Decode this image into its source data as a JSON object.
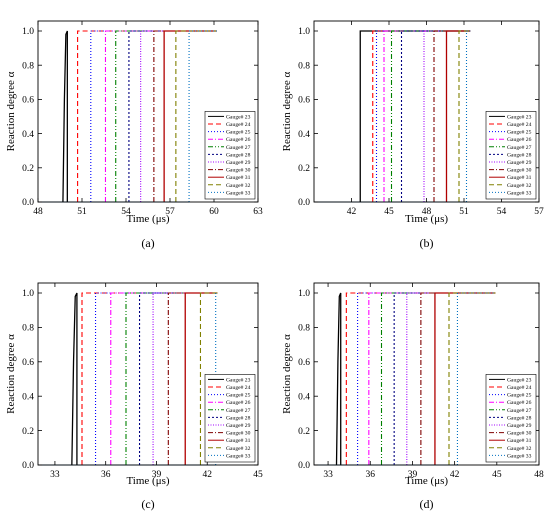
{
  "series_style": [
    {
      "name": "Gauge# 23",
      "color": "#000000",
      "dash": ""
    },
    {
      "name": "Gauge# 24",
      "color": "#ff0000",
      "dash": "5,3"
    },
    {
      "name": "Gauge# 25",
      "color": "#0000ff",
      "dash": "1,2"
    },
    {
      "name": "Gauge# 26",
      "color": "#ff00ff",
      "dash": "5,2,1,2"
    },
    {
      "name": "Gauge# 27",
      "color": "#008000",
      "dash": "5,2,1,2,1,2"
    },
    {
      "name": "Gauge# 28",
      "color": "#000080",
      "dash": "2,2"
    },
    {
      "name": "Gauge# 29",
      "color": "#a000ff",
      "dash": "1,1.5"
    },
    {
      "name": "Gauge# 30",
      "color": "#800000",
      "dash": "5,2,1,2"
    },
    {
      "name": "Gauge# 31",
      "color": "#b00000",
      "dash": ""
    },
    {
      "name": "Gauge# 32",
      "color": "#808000",
      "dash": "5,3"
    },
    {
      "name": "Gauge# 33",
      "color": "#0070c0",
      "dash": "1,2"
    }
  ],
  "chart_data": [
    {
      "type": "line",
      "panel_label": "(a)",
      "xlabel": "Time (μs)",
      "ylabel": "Reaction degree α",
      "xlim": [
        48,
        63
      ],
      "ylim": [
        0,
        1.0
      ],
      "xticks": [
        48,
        51,
        54,
        57,
        60,
        63
      ],
      "yticks": [
        0.0,
        0.2,
        0.4,
        0.6,
        0.8,
        1.0
      ],
      "legend_position": "bottom-right",
      "series": [
        {
          "name": "Gauge# 23",
          "x": [
            49.7,
            49.8,
            49.9,
            50.0,
            50.0
          ],
          "y": [
            0,
            0.6,
            0.98,
            1.0,
            0
          ]
        },
        {
          "name": "Gauge# 24",
          "x": [
            50.7,
            50.7,
            60.2
          ],
          "y": [
            0,
            1.0,
            1.0
          ]
        },
        {
          "name": "Gauge# 25",
          "x": [
            51.6,
            51.6,
            60.2
          ],
          "y": [
            0,
            1.0,
            1.0
          ]
        },
        {
          "name": "Gauge# 26",
          "x": [
            52.6,
            52.6,
            60.2
          ],
          "y": [
            0,
            1.0,
            1.0
          ]
        },
        {
          "name": "Gauge# 27",
          "x": [
            53.3,
            53.3,
            60.2
          ],
          "y": [
            0,
            1.0,
            1.0
          ]
        },
        {
          "name": "Gauge# 28",
          "x": [
            54.2,
            54.2,
            60.2
          ],
          "y": [
            0,
            1.0,
            1.0
          ]
        },
        {
          "name": "Gauge# 29",
          "x": [
            55.0,
            55.0,
            60.2
          ],
          "y": [
            0,
            1.0,
            1.0
          ]
        },
        {
          "name": "Gauge# 30",
          "x": [
            55.9,
            55.9,
            60.2
          ],
          "y": [
            0,
            1.0,
            1.0
          ]
        },
        {
          "name": "Gauge# 31",
          "x": [
            56.6,
            56.6,
            60.2
          ],
          "y": [
            0,
            1.0,
            1.0
          ]
        },
        {
          "name": "Gauge# 32",
          "x": [
            57.4,
            57.4,
            60.2
          ],
          "y": [
            0,
            1.0,
            1.0
          ]
        },
        {
          "name": "Gauge# 33",
          "x": [
            58.3,
            58.3,
            60.2
          ],
          "y": [
            0,
            1.0,
            1.0
          ]
        }
      ]
    },
    {
      "type": "line",
      "panel_label": "(b)",
      "xlabel": "Time (μs)",
      "ylabel": "Reaction degree α",
      "xlim": [
        39,
        57
      ],
      "ylim": [
        0,
        1.0
      ],
      "xticks": [
        42,
        45,
        48,
        51,
        54,
        57
      ],
      "yticks": [
        0.0,
        0.2,
        0.4,
        0.6,
        0.8,
        1.0
      ],
      "legend_position": "bottom-right",
      "series": [
        {
          "name": "Gauge# 23",
          "x": [
            42.7,
            42.7,
            51.5
          ],
          "y": [
            0,
            1.0,
            1.0
          ]
        },
        {
          "name": "Gauge# 24",
          "x": [
            43.7,
            43.7,
            51.5
          ],
          "y": [
            0,
            1.0,
            1.0
          ]
        },
        {
          "name": "Gauge# 25",
          "x": [
            44.0,
            44.0,
            51.5
          ],
          "y": [
            0,
            1.0,
            1.0
          ]
        },
        {
          "name": "Gauge# 26",
          "x": [
            44.6,
            44.6,
            51.5
          ],
          "y": [
            0,
            1.0,
            1.0
          ]
        },
        {
          "name": "Gauge# 27",
          "x": [
            45.2,
            45.2,
            51.5
          ],
          "y": [
            0,
            1.0,
            1.0
          ]
        },
        {
          "name": "Gauge# 28",
          "x": [
            46.0,
            46.0,
            51.5
          ],
          "y": [
            0,
            1.0,
            1.0
          ]
        },
        {
          "name": "Gauge# 29",
          "x": [
            47.8,
            47.8,
            51.5
          ],
          "y": [
            0,
            1.0,
            1.0
          ]
        },
        {
          "name": "Gauge# 30",
          "x": [
            48.6,
            48.6,
            51.5
          ],
          "y": [
            0,
            1.0,
            1.0
          ]
        },
        {
          "name": "Gauge# 31",
          "x": [
            49.6,
            49.6,
            51.5
          ],
          "y": [
            0,
            1.0,
            1.0
          ]
        },
        {
          "name": "Gauge# 32",
          "x": [
            50.6,
            50.6,
            51.5
          ],
          "y": [
            0,
            1.0,
            1.0
          ]
        },
        {
          "name": "Gauge# 33",
          "x": [
            51.2,
            51.2,
            51.5
          ],
          "y": [
            0,
            1.0,
            1.0
          ]
        }
      ]
    },
    {
      "type": "line",
      "panel_label": "(c)",
      "xlabel": "Time (μs)",
      "ylabel": "Reaction degree α",
      "xlim": [
        32,
        45
      ],
      "ylim": [
        0,
        1.0
      ],
      "xticks": [
        33,
        36,
        39,
        42,
        45
      ],
      "yticks": [
        0.0,
        0.2,
        0.4,
        0.6,
        0.8,
        1.0
      ],
      "legend_position": "bottom-right",
      "series": [
        {
          "name": "Gauge# 23",
          "x": [
            34.0,
            34.1,
            34.2,
            34.3,
            34.3
          ],
          "y": [
            0,
            0.6,
            0.98,
            1.0,
            0
          ]
        },
        {
          "name": "Gauge# 24",
          "x": [
            34.6,
            34.6,
            42.6
          ],
          "y": [
            0,
            1.0,
            1.0
          ]
        },
        {
          "name": "Gauge# 25",
          "x": [
            35.4,
            35.4,
            42.6
          ],
          "y": [
            0,
            1.0,
            1.0
          ]
        },
        {
          "name": "Gauge# 26",
          "x": [
            36.3,
            36.3,
            42.6
          ],
          "y": [
            0,
            1.0,
            1.0
          ]
        },
        {
          "name": "Gauge# 27",
          "x": [
            37.2,
            37.2,
            42.6
          ],
          "y": [
            0,
            1.0,
            1.0
          ]
        },
        {
          "name": "Gauge# 28",
          "x": [
            38.0,
            38.0,
            42.6
          ],
          "y": [
            0,
            1.0,
            1.0
          ]
        },
        {
          "name": "Gauge# 29",
          "x": [
            38.8,
            38.8,
            42.6
          ],
          "y": [
            0,
            1.0,
            1.0
          ]
        },
        {
          "name": "Gauge# 30",
          "x": [
            39.7,
            39.7,
            42.6
          ],
          "y": [
            0,
            1.0,
            1.0
          ]
        },
        {
          "name": "Gauge# 31",
          "x": [
            40.7,
            40.7,
            42.6
          ],
          "y": [
            0,
            1.0,
            1.0
          ]
        },
        {
          "name": "Gauge# 32",
          "x": [
            41.6,
            41.6,
            42.6
          ],
          "y": [
            0,
            1.0,
            1.0
          ]
        },
        {
          "name": "Gauge# 33",
          "x": [
            42.5,
            42.5,
            42.6
          ],
          "y": [
            0,
            1.0,
            1.0
          ]
        }
      ]
    },
    {
      "type": "line",
      "panel_label": "(d)",
      "xlabel": "Time (μs)",
      "ylabel": "Reaction degree α",
      "xlim": [
        32,
        48
      ],
      "ylim": [
        0,
        1.0
      ],
      "xticks": [
        33,
        36,
        39,
        42,
        45,
        48
      ],
      "yticks": [
        0.0,
        0.2,
        0.4,
        0.6,
        0.8,
        1.0
      ],
      "legend_position": "bottom-right",
      "series": [
        {
          "name": "Gauge# 23",
          "x": [
            33.6,
            33.7,
            33.8,
            33.9,
            33.9
          ],
          "y": [
            0,
            0.6,
            0.98,
            1.0,
            0
          ]
        },
        {
          "name": "Gauge# 24",
          "x": [
            34.3,
            34.3,
            44.9
          ],
          "y": [
            0,
            1.0,
            1.0
          ]
        },
        {
          "name": "Gauge# 25",
          "x": [
            35.1,
            35.1,
            44.9
          ],
          "y": [
            0,
            1.0,
            1.0
          ]
        },
        {
          "name": "Gauge# 26",
          "x": [
            35.9,
            35.9,
            44.9
          ],
          "y": [
            0,
            1.0,
            1.0
          ]
        },
        {
          "name": "Gauge# 27",
          "x": [
            36.8,
            36.8,
            44.9
          ],
          "y": [
            0,
            1.0,
            1.0
          ]
        },
        {
          "name": "Gauge# 28",
          "x": [
            37.7,
            37.7,
            44.9
          ],
          "y": [
            0,
            1.0,
            1.0
          ]
        },
        {
          "name": "Gauge# 29",
          "x": [
            38.6,
            38.6,
            44.9
          ],
          "y": [
            0,
            1.0,
            1.0
          ]
        },
        {
          "name": "Gauge# 30",
          "x": [
            39.6,
            39.6,
            44.9
          ],
          "y": [
            0,
            1.0,
            1.0
          ]
        },
        {
          "name": "Gauge# 31",
          "x": [
            40.6,
            40.6,
            44.9
          ],
          "y": [
            0,
            1.0,
            1.0
          ]
        },
        {
          "name": "Gauge# 32",
          "x": [
            41.6,
            41.6,
            44.9
          ],
          "y": [
            0,
            1.0,
            1.0
          ]
        },
        {
          "name": "Gauge# 33",
          "x": [
            42.2,
            42.2,
            44.9
          ],
          "y": [
            0,
            1.0,
            1.0
          ]
        }
      ]
    }
  ]
}
